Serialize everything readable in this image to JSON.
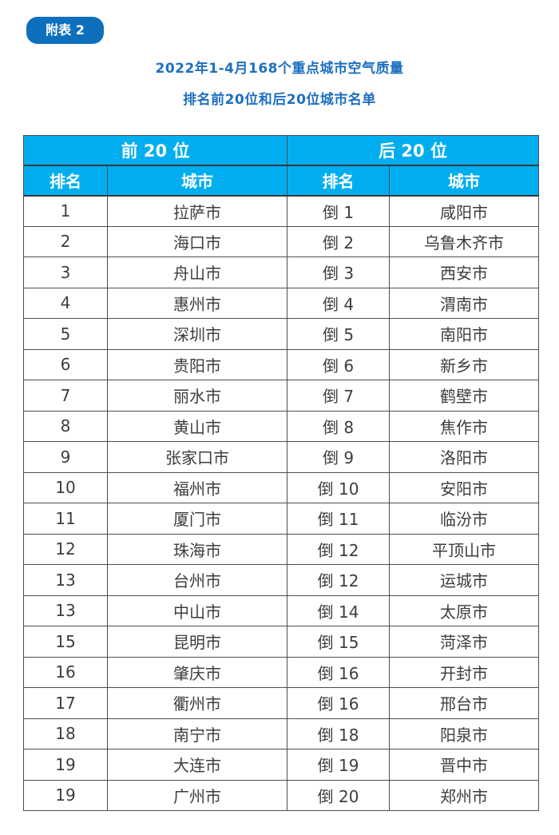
{
  "colors": {
    "badge_bg": "#0e70bd",
    "title_text": "#1e6fc0",
    "header_bg": "#00aeef",
    "header_text": "#ffffff",
    "body_text": "#3d3d3d",
    "border": "#4b4e52"
  },
  "badge": {
    "label": "附表 2"
  },
  "title": {
    "line1": "2022年1-4月168个重点城市空气质量",
    "line2": "排名前20位和后20位城市名单"
  },
  "table": {
    "group_headers": {
      "front": "前 20 位",
      "back": "后 20 位"
    },
    "column_headers": {
      "front_rank": "排名",
      "front_city": "城市",
      "back_rank": "排名",
      "back_city": "城市"
    },
    "rows": [
      [
        "1",
        "拉萨市",
        "倒 1",
        "咸阳市"
      ],
      [
        "2",
        "海口市",
        "倒 2",
        "乌鲁木齐市"
      ],
      [
        "3",
        "舟山市",
        "倒 3",
        "西安市"
      ],
      [
        "4",
        "惠州市",
        "倒 4",
        "渭南市"
      ],
      [
        "5",
        "深圳市",
        "倒 5",
        "南阳市"
      ],
      [
        "6",
        "贵阳市",
        "倒 6",
        "新乡市"
      ],
      [
        "7",
        "丽水市",
        "倒 7",
        "鹤壁市"
      ],
      [
        "8",
        "黄山市",
        "倒 8",
        "焦作市"
      ],
      [
        "9",
        "张家口市",
        "倒 9",
        "洛阳市"
      ],
      [
        "10",
        "福州市",
        "倒 10",
        "安阳市"
      ],
      [
        "11",
        "厦门市",
        "倒 11",
        "临汾市"
      ],
      [
        "12",
        "珠海市",
        "倒 12",
        "平顶山市"
      ],
      [
        "13",
        "台州市",
        "倒 12",
        "运城市"
      ],
      [
        "13",
        "中山市",
        "倒 14",
        "太原市"
      ],
      [
        "15",
        "昆明市",
        "倒 15",
        "菏泽市"
      ],
      [
        "16",
        "肇庆市",
        "倒 16",
        "开封市"
      ],
      [
        "17",
        "衢州市",
        "倒 16",
        "邢台市"
      ],
      [
        "18",
        "南宁市",
        "倒 18",
        "阳泉市"
      ],
      [
        "19",
        "大连市",
        "倒 19",
        "晋中市"
      ],
      [
        "19",
        "广州市",
        "倒 20",
        "郑州市"
      ]
    ]
  }
}
